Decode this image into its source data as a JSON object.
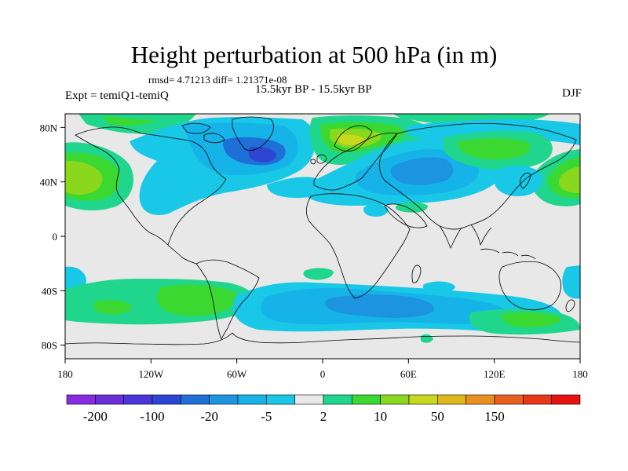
{
  "title": "Height perturbation at 500 hPa (in m)",
  "stats_text": "rmsd= 4.71213 diff= 1.21371e-08",
  "experiment": "Expt = temiQ1-temiQ",
  "period": "15.5kyr BP - 15.5kyr BP",
  "season": "DJF",
  "map": {
    "projection": "cylindrical equidistant",
    "lon_range": [
      -180,
      180
    ],
    "lat_range": [
      -90,
      90
    ],
    "lon_ticks": [
      "180",
      "120W",
      "60W",
      "0",
      "60E",
      "120E",
      "180"
    ],
    "lat_ticks": [
      "80N",
      "40N",
      "0",
      "40S",
      "80S"
    ],
    "background_color": "#e8e8e8",
    "coastline_color": "#000000"
  },
  "colorbar": {
    "colors": [
      "#8a2be2",
      "#6a2fd6",
      "#4b35d8",
      "#2c46d3",
      "#1e6fd6",
      "#1c94e0",
      "#16b3e8",
      "#18c8e6",
      "#e8e8e8",
      "#20d68c",
      "#3ad830",
      "#8ad81e",
      "#c8d81c",
      "#e0b81c",
      "#e89020",
      "#e86020",
      "#e83818",
      "#e81010"
    ],
    "labels": [
      "-200",
      "-100",
      "-20",
      "-5",
      "2",
      "10",
      "50",
      "150"
    ]
  },
  "features": [
    {
      "name": "north-pacific-high",
      "lat": 45,
      "lon": -170,
      "level": "positive-strong",
      "color": "#8ad81e"
    },
    {
      "name": "north-america-low",
      "lat": 56,
      "lon": -50,
      "level": "negative-moderate",
      "color": "#1e6fd6"
    },
    {
      "name": "scandinavia-high",
      "lat": 60,
      "lon": 20,
      "level": "positive-strong",
      "color": "#c8d81c"
    },
    {
      "name": "central-asia-low",
      "lat": 40,
      "lon": 60,
      "level": "negative-moderate",
      "color": "#1c94e0"
    },
    {
      "name": "east-asia-high",
      "lat": 55,
      "lon": 100,
      "level": "positive-moderate",
      "color": "#3ad830"
    },
    {
      "name": "south-america-high",
      "lat": -45,
      "lon": -80,
      "level": "positive-moderate",
      "color": "#3ad830"
    },
    {
      "name": "southern-ocean-low",
      "lat": -50,
      "lon": 20,
      "level": "negative-moderate",
      "color": "#1c94e0"
    }
  ]
}
